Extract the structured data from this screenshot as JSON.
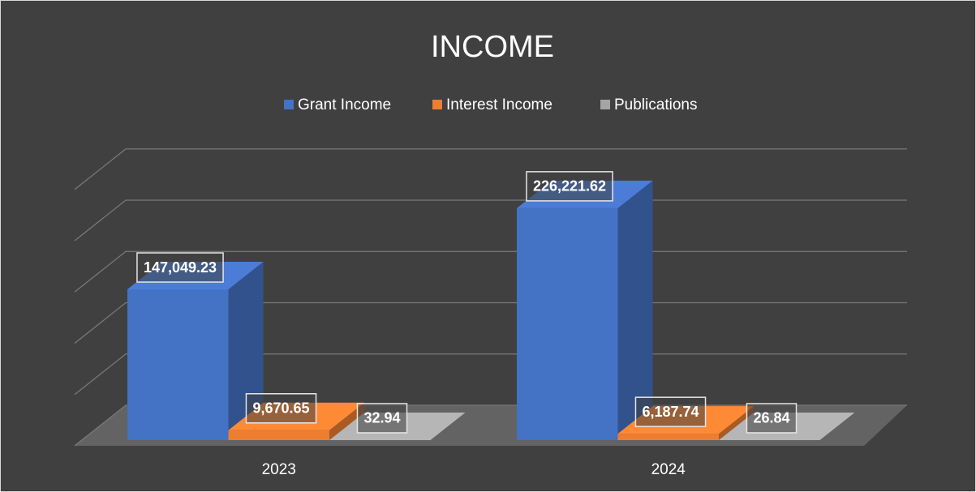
{
  "chart_data": {
    "type": "bar3d",
    "title": "INCOME",
    "categories": [
      "2023",
      "2024"
    ],
    "series": [
      {
        "name": "Grant Income",
        "color": "#4472c4",
        "values": [
          147049.23,
          226221.62
        ],
        "value_labels": [
          "147,049.23",
          "226,221.62"
        ]
      },
      {
        "name": "Interest Income",
        "color": "#ed7d31",
        "values": [
          9670.65,
          6187.74
        ],
        "value_labels": [
          "9,670.65",
          "6,187.74"
        ]
      },
      {
        "name": "Publications",
        "color": "#a5a5a5",
        "values": [
          32.94,
          26.84
        ],
        "value_labels": [
          "32.94",
          "26.84"
        ]
      }
    ],
    "ylim": [
      0,
      250000
    ],
    "yticks": [
      0,
      50000,
      100000,
      150000,
      200000,
      250000
    ],
    "grid": true,
    "legend": "top"
  }
}
